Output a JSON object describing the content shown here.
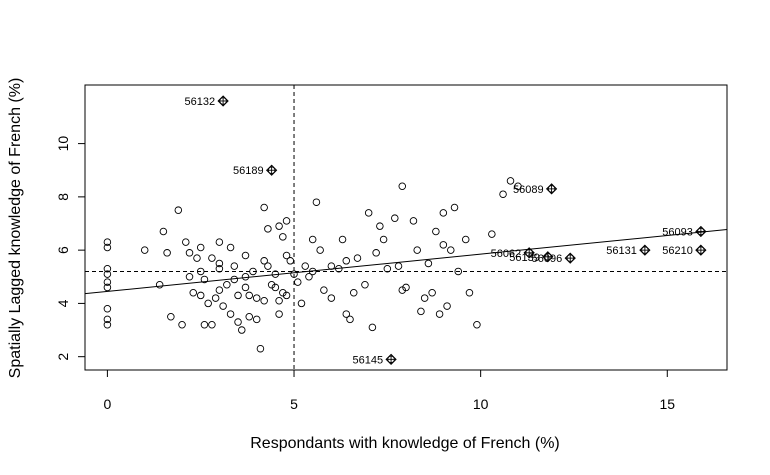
{
  "chart_data": {
    "type": "scatter",
    "title": "",
    "xlabel": "Respondants with knowledge of French (%)",
    "ylabel": "Spatially Lagged knowledge of French (%)",
    "xlim": [
      -0.6,
      16.6
    ],
    "ylim": [
      1.5,
      12.2
    ],
    "xticks": [
      0,
      5,
      10,
      15
    ],
    "yticks": [
      2,
      4,
      6,
      8,
      10
    ],
    "grid": false,
    "mean_x": 5.0,
    "mean_y": 5.2,
    "regression_line": {
      "intercept": 4.45,
      "slope": 0.14
    },
    "points": [
      {
        "x": 0,
        "y": 6.3
      },
      {
        "x": 0,
        "y": 6.1
      },
      {
        "x": 0,
        "y": 5.3
      },
      {
        "x": 0,
        "y": 5.1
      },
      {
        "x": 0,
        "y": 4.8
      },
      {
        "x": 0,
        "y": 4.6
      },
      {
        "x": 0,
        "y": 3.8
      },
      {
        "x": 0,
        "y": 3.4
      },
      {
        "x": 0,
        "y": 3.2
      },
      {
        "x": 1.0,
        "y": 6.0
      },
      {
        "x": 1.4,
        "y": 4.7
      },
      {
        "x": 1.5,
        "y": 6.7
      },
      {
        "x": 1.6,
        "y": 5.9
      },
      {
        "x": 1.7,
        "y": 3.5
      },
      {
        "x": 1.9,
        "y": 7.5
      },
      {
        "x": 2.0,
        "y": 3.2
      },
      {
        "x": 2.1,
        "y": 6.3
      },
      {
        "x": 2.2,
        "y": 5.9
      },
      {
        "x": 2.2,
        "y": 5.0
      },
      {
        "x": 2.3,
        "y": 4.4
      },
      {
        "x": 2.4,
        "y": 5.7
      },
      {
        "x": 2.5,
        "y": 6.1
      },
      {
        "x": 2.5,
        "y": 5.2
      },
      {
        "x": 2.5,
        "y": 4.3
      },
      {
        "x": 2.6,
        "y": 3.2
      },
      {
        "x": 2.6,
        "y": 4.9
      },
      {
        "x": 2.7,
        "y": 4.0
      },
      {
        "x": 2.8,
        "y": 5.7
      },
      {
        "x": 2.8,
        "y": 3.2
      },
      {
        "x": 2.9,
        "y": 4.2
      },
      {
        "x": 3.0,
        "y": 6.3
      },
      {
        "x": 3.0,
        "y": 5.5
      },
      {
        "x": 3.0,
        "y": 5.3
      },
      {
        "x": 3.0,
        "y": 4.5
      },
      {
        "x": 3.1,
        "y": 3.9
      },
      {
        "x": 3.2,
        "y": 4.7
      },
      {
        "x": 3.3,
        "y": 6.1
      },
      {
        "x": 3.3,
        "y": 3.6
      },
      {
        "x": 3.4,
        "y": 5.4
      },
      {
        "x": 3.4,
        "y": 4.9
      },
      {
        "x": 3.5,
        "y": 4.3
      },
      {
        "x": 3.5,
        "y": 3.3
      },
      {
        "x": 3.6,
        "y": 3.0
      },
      {
        "x": 3.7,
        "y": 5.8
      },
      {
        "x": 3.7,
        "y": 5.0
      },
      {
        "x": 3.7,
        "y": 4.6
      },
      {
        "x": 3.8,
        "y": 4.3
      },
      {
        "x": 3.8,
        "y": 3.5
      },
      {
        "x": 3.9,
        "y": 5.2
      },
      {
        "x": 4.0,
        "y": 4.2
      },
      {
        "x": 4.0,
        "y": 3.4
      },
      {
        "x": 4.1,
        "y": 2.3
      },
      {
        "x": 4.2,
        "y": 7.6
      },
      {
        "x": 4.2,
        "y": 5.6
      },
      {
        "x": 4.2,
        "y": 4.1
      },
      {
        "x": 4.3,
        "y": 5.4
      },
      {
        "x": 4.3,
        "y": 6.8
      },
      {
        "x": 4.4,
        "y": 4.7
      },
      {
        "x": 4.5,
        "y": 5.1
      },
      {
        "x": 4.5,
        "y": 4.6
      },
      {
        "x": 4.6,
        "y": 6.9
      },
      {
        "x": 4.6,
        "y": 4.1
      },
      {
        "x": 4.6,
        "y": 3.6
      },
      {
        "x": 4.7,
        "y": 6.5
      },
      {
        "x": 4.7,
        "y": 4.4
      },
      {
        "x": 4.8,
        "y": 5.8
      },
      {
        "x": 4.8,
        "y": 7.1
      },
      {
        "x": 4.8,
        "y": 4.3
      },
      {
        "x": 4.9,
        "y": 5.6
      },
      {
        "x": 5.0,
        "y": 5.1
      },
      {
        "x": 5.1,
        "y": 4.8
      },
      {
        "x": 5.2,
        "y": 4.0
      },
      {
        "x": 5.3,
        "y": 5.4
      },
      {
        "x": 5.4,
        "y": 5.0
      },
      {
        "x": 5.5,
        "y": 6.4
      },
      {
        "x": 5.5,
        "y": 5.2
      },
      {
        "x": 5.6,
        "y": 7.8
      },
      {
        "x": 5.7,
        "y": 6.0
      },
      {
        "x": 5.8,
        "y": 4.5
      },
      {
        "x": 6.0,
        "y": 4.2
      },
      {
        "x": 6.0,
        "y": 5.4
      },
      {
        "x": 6.2,
        "y": 5.3
      },
      {
        "x": 6.3,
        "y": 6.4
      },
      {
        "x": 6.4,
        "y": 5.6
      },
      {
        "x": 6.4,
        "y": 3.6
      },
      {
        "x": 6.5,
        "y": 3.4
      },
      {
        "x": 6.6,
        "y": 4.4
      },
      {
        "x": 6.7,
        "y": 5.7
      },
      {
        "x": 6.9,
        "y": 4.7
      },
      {
        "x": 7.0,
        "y": 7.4
      },
      {
        "x": 7.1,
        "y": 3.1
      },
      {
        "x": 7.2,
        "y": 5.9
      },
      {
        "x": 7.3,
        "y": 6.9
      },
      {
        "x": 7.4,
        "y": 6.4
      },
      {
        "x": 7.5,
        "y": 5.3
      },
      {
        "x": 7.7,
        "y": 7.2
      },
      {
        "x": 7.8,
        "y": 5.4
      },
      {
        "x": 7.9,
        "y": 4.5
      },
      {
        "x": 7.9,
        "y": 8.4
      },
      {
        "x": 8.0,
        "y": 4.6
      },
      {
        "x": 8.2,
        "y": 7.1
      },
      {
        "x": 8.3,
        "y": 6.0
      },
      {
        "x": 8.4,
        "y": 3.7
      },
      {
        "x": 8.5,
        "y": 4.2
      },
      {
        "x": 8.6,
        "y": 5.5
      },
      {
        "x": 8.7,
        "y": 4.4
      },
      {
        "x": 8.8,
        "y": 6.7
      },
      {
        "x": 8.9,
        "y": 3.6
      },
      {
        "x": 9.0,
        "y": 7.4
      },
      {
        "x": 9.0,
        "y": 6.2
      },
      {
        "x": 9.1,
        "y": 3.9
      },
      {
        "x": 9.2,
        "y": 6.0
      },
      {
        "x": 9.3,
        "y": 7.6
      },
      {
        "x": 9.4,
        "y": 5.2
      },
      {
        "x": 9.6,
        "y": 6.4
      },
      {
        "x": 9.7,
        "y": 4.4
      },
      {
        "x": 9.9,
        "y": 3.2
      },
      {
        "x": 10.3,
        "y": 6.6
      },
      {
        "x": 10.6,
        "y": 8.1
      },
      {
        "x": 10.8,
        "y": 8.6
      },
      {
        "x": 11.0,
        "y": 8.4
      }
    ],
    "labeled_points": [
      {
        "label": "56132",
        "x": 3.1,
        "y": 11.6,
        "label_side": "left"
      },
      {
        "label": "56189",
        "x": 4.4,
        "y": 9.0,
        "label_side": "left"
      },
      {
        "label": "56089",
        "x": 11.9,
        "y": 8.3,
        "label_side": "left"
      },
      {
        "label": "56093",
        "x": 15.9,
        "y": 6.7,
        "label_side": "left"
      },
      {
        "label": "56131",
        "x": 14.4,
        "y": 6.0,
        "label_side": "left"
      },
      {
        "label": "56210",
        "x": 15.9,
        "y": 6.0,
        "label_side": "left"
      },
      {
        "label": "56062",
        "x": 11.3,
        "y": 5.9,
        "label_side": "left"
      },
      {
        "label": "56139",
        "x": 11.8,
        "y": 5.75,
        "label_side": "left"
      },
      {
        "label": "56096",
        "x": 12.4,
        "y": 5.7,
        "label_side": "left"
      },
      {
        "label": "56145",
        "x": 7.6,
        "y": 1.9,
        "label_side": "left"
      }
    ]
  }
}
